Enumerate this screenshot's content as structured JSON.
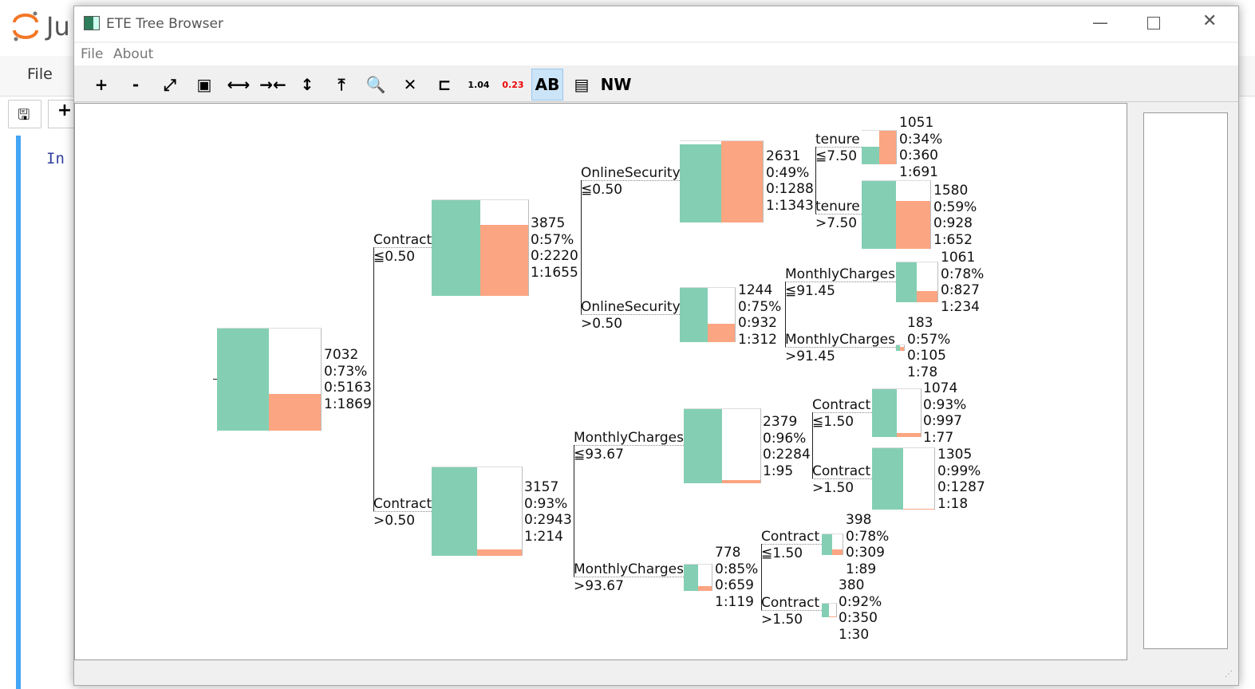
{
  "jupyter": {
    "logo_text": "Ju",
    "menu_file": "File",
    "cell_prompt": "In",
    "right_clip": "n"
  },
  "window": {
    "title": "ETE Tree Browser",
    "menu": [
      "File",
      "About"
    ],
    "toolbar": [
      {
        "icon": "zoom-in-icon",
        "label": "+"
      },
      {
        "icon": "zoom-out-icon",
        "label": "-"
      },
      {
        "icon": "fit-screen-icon",
        "label": "⤢"
      },
      {
        "icon": "fit-tree-icon",
        "label": "▣"
      },
      {
        "icon": "expand-x-icon",
        "label": "⟷"
      },
      {
        "icon": "shrink-x-icon",
        "label": "→←"
      },
      {
        "icon": "expand-y-icon",
        "label": "↕"
      },
      {
        "icon": "shrink-y-icon",
        "label": "⤒"
      },
      {
        "icon": "search-node-icon",
        "label": "🔍"
      },
      {
        "icon": "clear-search-icon",
        "label": "✕"
      },
      {
        "icon": "tree-layout-icon",
        "label": "⊏"
      },
      {
        "icon": "branch-length-icon",
        "label": "1.04"
      },
      {
        "icon": "branch-support-icon",
        "label": "0.23"
      },
      {
        "icon": "leaf-names-icon",
        "label": "AB",
        "active": true
      },
      {
        "icon": "export-pdf-icon",
        "label": "▤"
      },
      {
        "icon": "newick-icon",
        "label": "NW"
      }
    ]
  },
  "colors": {
    "class0": "#84cfb4",
    "class1": "#fca582"
  },
  "tree": {
    "nodes": [
      {
        "id": "root",
        "feature": "",
        "cond": "",
        "n": "7032",
        "pct": "0:73%",
        "c0": 5163,
        "c1": 1869,
        "c0_label": "0:5163",
        "c1_label": "1:1869"
      },
      {
        "id": "n1",
        "feature": "Contract",
        "cond": "≦0.50",
        "n": "3875",
        "pct": "0:57%",
        "c0": 2220,
        "c1": 1655,
        "c0_label": "0:2220",
        "c1_label": "1:1655"
      },
      {
        "id": "n2",
        "feature": "Contract",
        "cond": ">0.50",
        "n": "3157",
        "pct": "0:93%",
        "c0": 2943,
        "c1": 214,
        "c0_label": "0:2943",
        "c1_label": "1:214"
      },
      {
        "id": "n3",
        "feature": "OnlineSecurity",
        "cond": "≦0.50",
        "n": "2631",
        "pct": "0:49%",
        "c0": 1288,
        "c1": 1343,
        "c0_label": "0:1288",
        "c1_label": "1:1343"
      },
      {
        "id": "n4",
        "feature": "OnlineSecurity",
        "cond": ">0.50",
        "n": "1244",
        "pct": "0:75%",
        "c0": 932,
        "c1": 312,
        "c0_label": "0:932",
        "c1_label": "1:312"
      },
      {
        "id": "n5",
        "feature": "tenure",
        "cond": "≦7.50",
        "n": "1051",
        "pct": "0:34%",
        "c0": 360,
        "c1": 691,
        "c0_label": "0:360",
        "c1_label": "1:691"
      },
      {
        "id": "n6",
        "feature": "tenure",
        "cond": ">7.50",
        "n": "1580",
        "pct": "0:59%",
        "c0": 928,
        "c1": 652,
        "c0_label": "0:928",
        "c1_label": "1:652"
      },
      {
        "id": "n7",
        "feature": "MonthlyCharges",
        "cond": "≦91.45",
        "n": "1061",
        "pct": "0:78%",
        "c0": 827,
        "c1": 234,
        "c0_label": "0:827",
        "c1_label": "1:234"
      },
      {
        "id": "n8",
        "feature": "MonthlyCharges",
        "cond": ">91.45",
        "n": "183",
        "pct": "0:57%",
        "c0": 105,
        "c1": 78,
        "c0_label": "0:105",
        "c1_label": "1:78"
      },
      {
        "id": "n9",
        "feature": "MonthlyCharges",
        "cond": "≦93.67",
        "n": "2379",
        "pct": "0:96%",
        "c0": 2284,
        "c1": 95,
        "c0_label": "0:2284",
        "c1_label": "1:95"
      },
      {
        "id": "n10",
        "feature": "MonthlyCharges",
        "cond": ">93.67",
        "n": "778",
        "pct": "0:85%",
        "c0": 659,
        "c1": 119,
        "c0_label": "0:659",
        "c1_label": "1:119"
      },
      {
        "id": "n11",
        "feature": "Contract",
        "cond": "≦1.50",
        "n": "1074",
        "pct": "0:93%",
        "c0": 997,
        "c1": 77,
        "c0_label": "0:997",
        "c1_label": "1:77"
      },
      {
        "id": "n12",
        "feature": "Contract",
        "cond": ">1.50",
        "n": "1305",
        "pct": "0:99%",
        "c0": 1287,
        "c1": 18,
        "c0_label": "0:1287",
        "c1_label": "1:18"
      },
      {
        "id": "n13",
        "feature": "Contract",
        "cond": "≦1.50",
        "n": "398",
        "pct": "0:78%",
        "c0": 309,
        "c1": 89,
        "c0_label": "0:309",
        "c1_label": "1:89"
      },
      {
        "id": "n14",
        "feature": "Contract",
        "cond": ">1.50",
        "n": "380",
        "pct": "0:92%",
        "c0": 350,
        "c1": 30,
        "c0_label": "0:350",
        "c1_label": "1:30"
      }
    ]
  }
}
